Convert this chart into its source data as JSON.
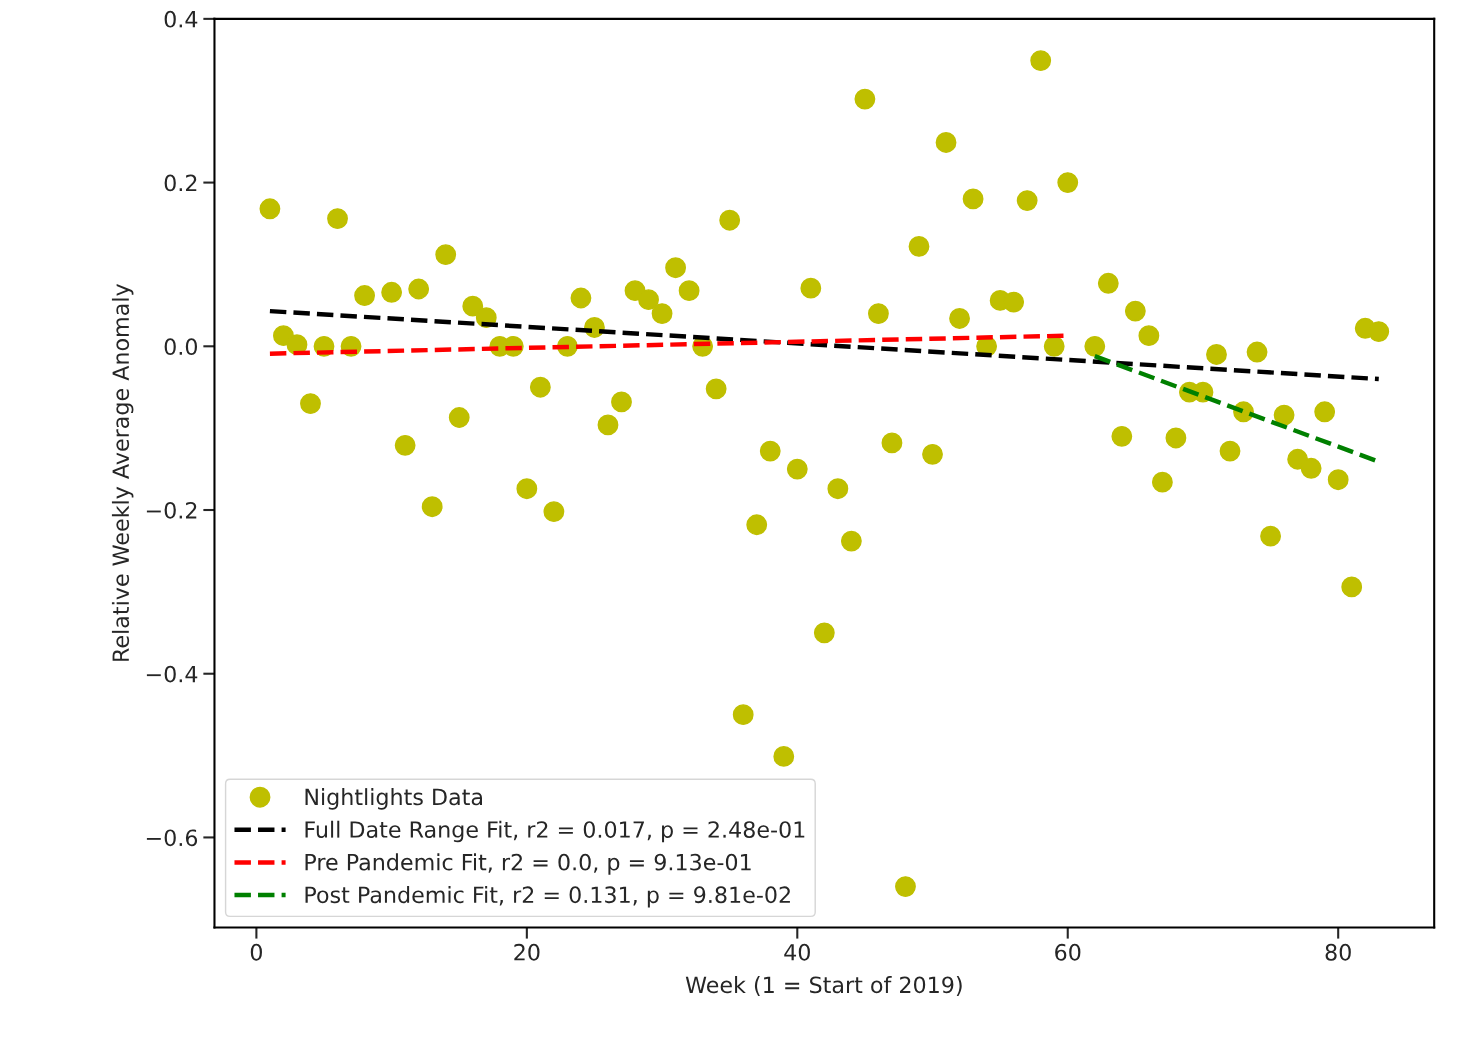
{
  "chart_data": {
    "type": "scatter",
    "xlabel": "Week (1 = Start of 2019)",
    "ylabel": "Relative Weekly Average Anomaly",
    "xlim": [
      -3.1,
      87.1
    ],
    "ylim": [
      -0.71,
      0.4
    ],
    "xticks": [
      0,
      20,
      40,
      60,
      80
    ],
    "yticks": [
      {
        "value": -0.6,
        "label": "−0.6"
      },
      {
        "value": -0.4,
        "label": "−0.4"
      },
      {
        "value": -0.2,
        "label": "−0.2"
      },
      {
        "value": 0.0,
        "label": "0.0"
      },
      {
        "value": 0.2,
        "label": "0.2"
      },
      {
        "value": 0.4,
        "label": "0.4"
      }
    ],
    "grid": false,
    "legend": "bottom left",
    "series": [
      {
        "name": "Nightlights Data",
        "marker": "circle",
        "color": "#bfbf00",
        "x": [
          1,
          2,
          3,
          4,
          5,
          6,
          7,
          8,
          10,
          11,
          12,
          13,
          14,
          15,
          16,
          17,
          18,
          19,
          20,
          21,
          22,
          23,
          24,
          25,
          26,
          27,
          28,
          29,
          30,
          31,
          32,
          33,
          34,
          35,
          36,
          37,
          38,
          39,
          40,
          41,
          42,
          43,
          44,
          45,
          46,
          47,
          48,
          49,
          50,
          51,
          52,
          53,
          54,
          55,
          56,
          57,
          58,
          59,
          60,
          62,
          63,
          64,
          65,
          66,
          67,
          68,
          69,
          70,
          71,
          72,
          73,
          74,
          75,
          76,
          77,
          78,
          79,
          80,
          81,
          82,
          83
        ],
        "values": [
          0.168,
          0.013,
          0.002,
          -0.07,
          0.0,
          0.156,
          0.0,
          0.062,
          0.066,
          -0.121,
          0.07,
          -0.196,
          0.112,
          -0.087,
          0.049,
          0.035,
          0.0,
          0.0,
          -0.174,
          -0.05,
          -0.202,
          0.0,
          0.059,
          0.023,
          -0.096,
          -0.068,
          0.068,
          0.057,
          0.04,
          0.096,
          0.068,
          0.0,
          -0.052,
          0.154,
          -0.45,
          -0.218,
          -0.128,
          -0.501,
          -0.15,
          0.071,
          -0.35,
          -0.174,
          -0.238,
          0.302,
          0.04,
          -0.118,
          -0.66,
          0.122,
          -0.132,
          0.249,
          0.034,
          0.18,
          0.0,
          0.056,
          0.054,
          0.178,
          0.349,
          0.0,
          0.2,
          0.0,
          0.077,
          -0.11,
          0.043,
          0.013,
          -0.166,
          -0.112,
          -0.056,
          -0.056,
          -0.01,
          -0.128,
          -0.08,
          -0.007,
          -0.232,
          -0.084,
          -0.138,
          -0.149,
          -0.08,
          -0.163,
          -0.294,
          0.022,
          0.018
        ]
      },
      {
        "name": "Full Date Range Fit, r2 = 0.017, p = 2.48e-01",
        "type": "line",
        "line_style": "dashed",
        "color": "#000000",
        "x": [
          1,
          83
        ],
        "values": [
          0.043,
          -0.04
        ]
      },
      {
        "name": "Pre Pandemic Fit, r2 = 0.0, p = 9.13e-01",
        "type": "line",
        "line_style": "dashed",
        "color": "#ff0000",
        "x": [
          1,
          60
        ],
        "values": [
          -0.009,
          0.013
        ]
      },
      {
        "name": "Post Pandemic Fit, r2 = 0.131, p = 9.81e-02",
        "type": "line",
        "line_style": "dashed",
        "color": "#008000",
        "x": [
          62,
          83
        ],
        "values": [
          -0.012,
          -0.141
        ]
      }
    ]
  }
}
